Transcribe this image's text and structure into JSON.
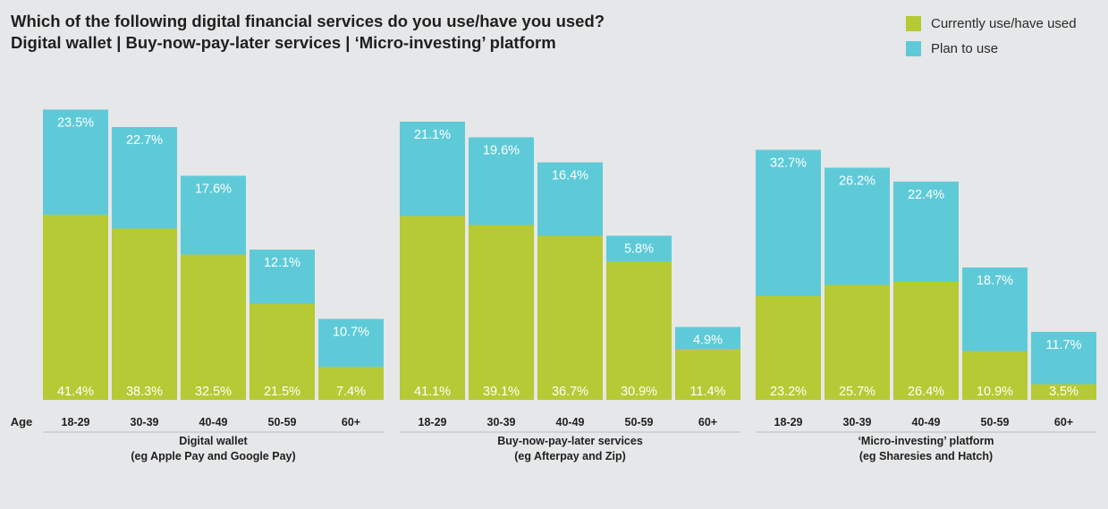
{
  "title": {
    "line1": "Which of the following digital financial services do you use/have you used?",
    "line2": "Digital wallet | Buy-now-pay-later services | ‘Micro-investing’ platform"
  },
  "legend": [
    {
      "label": "Currently use/have used",
      "color": "#b5ca34"
    },
    {
      "label": "Plan to use",
      "color": "#5ecad8"
    }
  ],
  "chart_data": {
    "type": "bar",
    "stacked": true,
    "x_axis_label": "Age",
    "categories": [
      "18-29",
      "30-39",
      "40-49",
      "50-59",
      "60+"
    ],
    "groups": [
      {
        "label_line1": "Digital wallet",
        "label_line2": "(eg Apple Pay and Google Pay)",
        "series": [
          {
            "name": "Currently use/have used",
            "values": [
              41.4,
              38.3,
              32.5,
              21.5,
              7.4
            ]
          },
          {
            "name": "Plan to use",
            "values": [
              23.5,
              22.7,
              17.6,
              12.1,
              10.7
            ]
          }
        ]
      },
      {
        "label_line1": "Buy-now-pay-later services",
        "label_line2": "(eg Afterpay and Zip)",
        "series": [
          {
            "name": "Currently use/have used",
            "values": [
              41.1,
              39.1,
              36.7,
              30.9,
              11.4
            ]
          },
          {
            "name": "Plan to use",
            "values": [
              21.1,
              19.6,
              16.4,
              5.8,
              4.9
            ]
          }
        ]
      },
      {
        "label_line1": "‘Micro-investing’ platform",
        "label_line2": "(eg Sharesies and Hatch)",
        "series": [
          {
            "name": "Currently use/have used",
            "values": [
              23.2,
              25.7,
              26.4,
              10.9,
              3.5
            ]
          },
          {
            "name": "Plan to use",
            "values": [
              32.7,
              26.2,
              22.4,
              18.7,
              11.7
            ]
          }
        ]
      }
    ],
    "value_suffix": "%",
    "colors": {
      "current": "#b5ca34",
      "plan": "#5ecad8",
      "label_text": "#ffffff",
      "axis_line": "#bcbec0"
    }
  }
}
